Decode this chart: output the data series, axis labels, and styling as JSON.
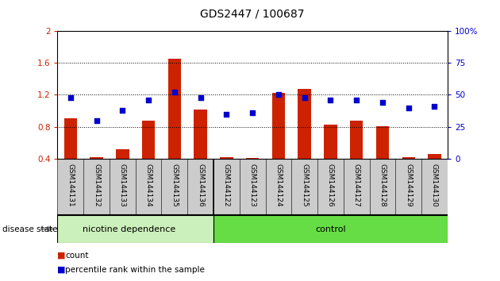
{
  "title": "GDS2447 / 100687",
  "samples": [
    "GSM144131",
    "GSM144132",
    "GSM144133",
    "GSM144134",
    "GSM144135",
    "GSM144136",
    "GSM144122",
    "GSM144123",
    "GSM144124",
    "GSM144125",
    "GSM144126",
    "GSM144127",
    "GSM144128",
    "GSM144129",
    "GSM144130"
  ],
  "count_values": [
    0.91,
    0.42,
    0.52,
    0.88,
    1.65,
    1.02,
    0.42,
    0.41,
    1.22,
    1.27,
    0.83,
    0.88,
    0.81,
    0.42,
    0.46
  ],
  "percentile_values": [
    48,
    30,
    38,
    46,
    52,
    48,
    35,
    36,
    50,
    48,
    46,
    46,
    44,
    40,
    41
  ],
  "bar_color": "#cc2200",
  "dot_color": "#0000cc",
  "ylim_left": [
    0.4,
    2.0
  ],
  "ylim_right": [
    0,
    100
  ],
  "yticks_left": [
    0.4,
    0.8,
    1.2,
    1.6,
    2.0
  ],
  "ytick_labels_left": [
    "0.4",
    "0.8",
    "1.2",
    "1.6",
    "2"
  ],
  "yticks_right": [
    0,
    25,
    50,
    75,
    100
  ],
  "ytick_labels_right": [
    "0",
    "25",
    "50",
    "75",
    "100%"
  ],
  "group1_label": "nicotine dependence",
  "group2_label": "control",
  "group1_color": "#ccf0bb",
  "group2_color": "#66dd44",
  "disease_state_label": "disease state",
  "legend_count_label": "count",
  "legend_pct_label": "percentile rank within the sample",
  "bar_width": 0.5,
  "background_color": "#ffffff",
  "plot_bg_color": "#ffffff",
  "title_fontsize": 10,
  "tick_fontsize": 7.5,
  "label_fontsize": 8,
  "n_nicotine": 6,
  "n_control": 9
}
